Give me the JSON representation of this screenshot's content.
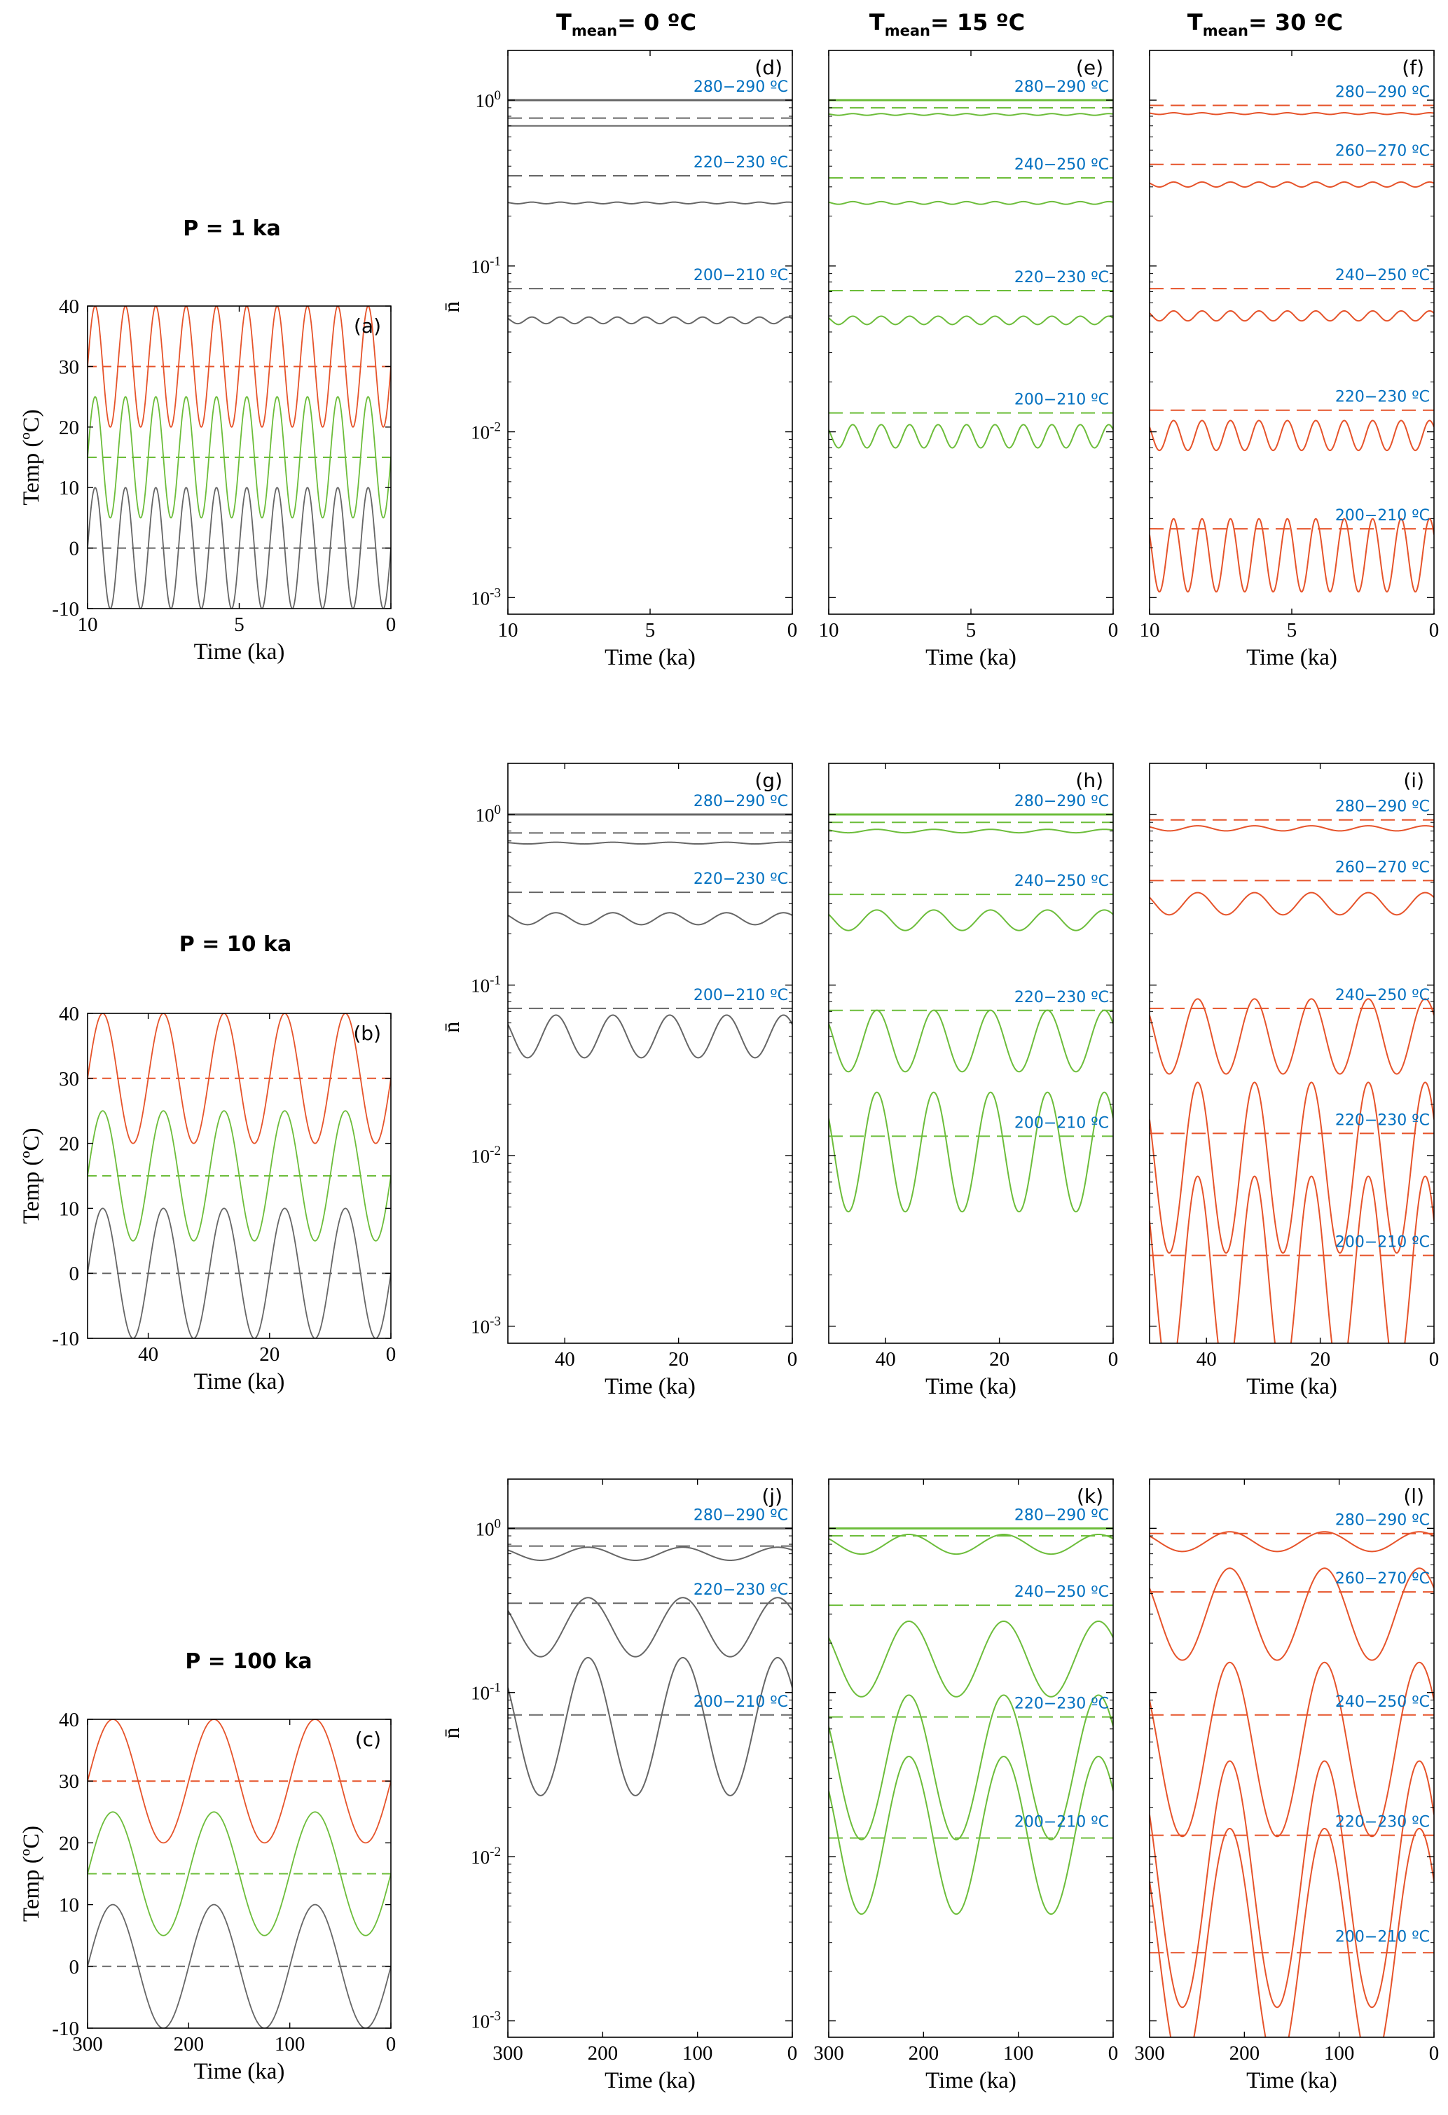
{
  "colors": {
    "gray": "#666666",
    "green": "#6cbd3a",
    "orange": "#e6532a",
    "band_label": "#0070c0",
    "axis": "#000000"
  },
  "headers": {
    "col1": {
      "main": "T",
      "sub": "mean",
      "rest": "= 0 ºC"
    },
    "col2": {
      "main": "T",
      "sub": "mean",
      "rest": "= 15 ºC"
    },
    "col3": {
      "main": "T",
      "sub": "mean",
      "rest": "= 30 ºC"
    }
  },
  "row_labels": [
    "P = 1 ka",
    "P = 10 ka",
    "P = 100 ka"
  ],
  "temp_axis": {
    "ylabel": "Temp (ºC)",
    "xlabel": "Time (ka)",
    "yticks": [
      "-10",
      "0",
      "10",
      "20",
      "30",
      "40"
    ],
    "ylim": [
      -10,
      40
    ]
  },
  "n_axis": {
    "ylabel": "n̄",
    "xlabel": "Time (ka)",
    "yticks": [
      "10-3",
      "10-2",
      "10-1",
      "100"
    ],
    "ylim_log10": [
      -3.1,
      0.3
    ]
  },
  "rows": [
    {
      "period_ka": 1,
      "xmax": 10,
      "xticks": [
        "10",
        "5",
        "0"
      ]
    },
    {
      "period_ka": 10,
      "xmax": 50,
      "xticks": [
        "40",
        "20",
        "0"
      ]
    },
    {
      "period_ka": 100,
      "xmax": 300,
      "xticks": [
        "300",
        "200",
        "100",
        "0"
      ]
    }
  ],
  "chart_data": [
    {
      "panel": "(a)",
      "type": "line",
      "kind": "temp",
      "row": 0,
      "xlabel": "Time (ka)",
      "ylabel": "Temp (ºC)",
      "xlim": [
        10,
        0
      ],
      "ylim": [
        -10,
        40
      ],
      "period_ka": 1,
      "amplitude_c": 10,
      "series": [
        {
          "name": "Tmean 0",
          "color": "gray",
          "mean": 0
        },
        {
          "name": "Tmean 15",
          "color": "green",
          "mean": 15
        },
        {
          "name": "Tmean 30",
          "color": "orange",
          "mean": 30
        }
      ]
    },
    {
      "panel": "(b)",
      "type": "line",
      "kind": "temp",
      "row": 1,
      "xlabel": "Time (ka)",
      "ylabel": "Temp (ºC)",
      "xlim": [
        50,
        0
      ],
      "ylim": [
        -10,
        40
      ],
      "period_ka": 10,
      "amplitude_c": 10,
      "series": [
        {
          "name": "Tmean 0",
          "color": "gray",
          "mean": 0
        },
        {
          "name": "Tmean 15",
          "color": "green",
          "mean": 15
        },
        {
          "name": "Tmean 30",
          "color": "orange",
          "mean": 30
        }
      ]
    },
    {
      "panel": "(c)",
      "type": "line",
      "kind": "temp",
      "row": 2,
      "xlabel": "Time (ka)",
      "ylabel": "Temp (ºC)",
      "xlim": [
        300,
        0
      ],
      "ylim": [
        -10,
        40
      ],
      "period_ka": 100,
      "amplitude_c": 10,
      "series": [
        {
          "name": "Tmean 0",
          "color": "gray",
          "mean": 0
        },
        {
          "name": "Tmean 15",
          "color": "green",
          "mean": 15
        },
        {
          "name": "Tmean 30",
          "color": "orange",
          "mean": 30
        }
      ]
    },
    {
      "panel": "(d)",
      "type": "line",
      "kind": "n",
      "row": 0,
      "col": 0,
      "color": "gray",
      "period_ka": 1,
      "xlim": [
        10,
        0
      ],
      "yscale": "log",
      "series": [
        {
          "band": "280-290",
          "label": "280−290 ºC",
          "dashed": 1.0,
          "mean": 1.0,
          "amp": 0.0
        },
        {
          "band": "260-270",
          "label": "",
          "dashed": 0.78,
          "mean": 0.7,
          "amp": 0.0
        },
        {
          "band": "220-230",
          "label": "220−230 ºC",
          "dashed": 0.35,
          "mean": 0.24,
          "amp": 0.005
        },
        {
          "band": "200-210",
          "label": "200−210 ºC",
          "dashed": 0.073,
          "mean": 0.047,
          "amp": 0.02
        }
      ]
    },
    {
      "panel": "(e)",
      "type": "line",
      "kind": "n",
      "row": 0,
      "col": 1,
      "color": "green",
      "period_ka": 1,
      "xlim": [
        10,
        0
      ],
      "yscale": "log",
      "series": [
        {
          "band": "280-290",
          "label": "280−290 ºC",
          "dashed": 1.0,
          "mean": 1.0,
          "amp": 0.0
        },
        {
          "band": "260-270",
          "label": "",
          "dashed": 0.9,
          "mean": 0.82,
          "amp": 0.005
        },
        {
          "band": "240-250",
          "label": "240−250 ºC",
          "dashed": 0.34,
          "mean": 0.24,
          "amp": 0.008
        },
        {
          "band": "220-230",
          "label": "220−230 ºC",
          "dashed": 0.071,
          "mean": 0.047,
          "amp": 0.025
        },
        {
          "band": "200-210",
          "label": "200−210 ºC",
          "dashed": 0.013,
          "mean": 0.0094,
          "amp": 0.07
        }
      ]
    },
    {
      "panel": "(f)",
      "type": "line",
      "kind": "n",
      "row": 0,
      "col": 2,
      "color": "orange",
      "period_ka": 1,
      "xlim": [
        10,
        0
      ],
      "yscale": "log",
      "series": [
        {
          "band": "280-290",
          "label": "280−290 ºC",
          "dashed": 0.93,
          "mean": 0.83,
          "amp": 0.005
        },
        {
          "band": "260-270",
          "label": "260−270 ºC",
          "dashed": 0.41,
          "mean": 0.31,
          "amp": 0.015
        },
        {
          "band": "240-250",
          "label": "240−250 ºC",
          "dashed": 0.073,
          "mean": 0.05,
          "amp": 0.03
        },
        {
          "band": "220-230",
          "label": "220−230 ºC",
          "dashed": 0.0135,
          "mean": 0.0095,
          "amp": 0.09
        },
        {
          "band": "200-210",
          "label": "200−210 ºC",
          "dashed": 0.0026,
          "mean": 0.0018,
          "amp": 0.22
        }
      ]
    },
    {
      "panel": "(g)",
      "type": "line",
      "kind": "n",
      "row": 1,
      "col": 0,
      "color": "gray",
      "period_ka": 10,
      "xlim": [
        50,
        0
      ],
      "yscale": "log",
      "series": [
        {
          "band": "280-290",
          "label": "280−290 ºC",
          "dashed": 1.0,
          "mean": 1.0,
          "amp": 0.0
        },
        {
          "band": "260-270",
          "label": "",
          "dashed": 0.78,
          "mean": 0.68,
          "amp": 0.005
        },
        {
          "band": "220-230",
          "label": "220−230 ºC",
          "dashed": 0.35,
          "mean": 0.245,
          "amp": 0.035
        },
        {
          "band": "200-210",
          "label": "200−210 ºC",
          "dashed": 0.073,
          "mean": 0.05,
          "amp": 0.125
        }
      ]
    },
    {
      "panel": "(h)",
      "type": "line",
      "kind": "n",
      "row": 1,
      "col": 1,
      "color": "green",
      "period_ka": 10,
      "xlim": [
        50,
        0
      ],
      "yscale": "log",
      "series": [
        {
          "band": "280-290",
          "label": "280−290 ºC",
          "dashed": 1.0,
          "mean": 1.0,
          "amp": 0.0
        },
        {
          "band": "260-270",
          "label": "",
          "dashed": 0.9,
          "mean": 0.8,
          "amp": 0.01
        },
        {
          "band": "240-250",
          "label": "240−250 ºC",
          "dashed": 0.34,
          "mean": 0.24,
          "amp": 0.06
        },
        {
          "band": "220-230",
          "label": "220−230 ºC",
          "dashed": 0.071,
          "mean": 0.047,
          "amp": 0.18
        },
        {
          "band": "200-210",
          "label": "200−210 ºC",
          "dashed": 0.013,
          "mean": 0.0105,
          "amp": 0.35
        }
      ]
    },
    {
      "panel": "(i)",
      "type": "line",
      "kind": "n",
      "row": 1,
      "col": 2,
      "color": "orange",
      "period_ka": 10,
      "xlim": [
        50,
        0
      ],
      "yscale": "log",
      "series": [
        {
          "band": "280-290",
          "label": "280−290 ºC",
          "dashed": 0.93,
          "mean": 0.83,
          "amp": 0.015
        },
        {
          "band": "260-270",
          "label": "260−270 ºC",
          "dashed": 0.41,
          "mean": 0.3,
          "amp": 0.065
        },
        {
          "band": "240-250",
          "label": "240−250 ºC",
          "dashed": 0.073,
          "mean": 0.05,
          "amp": 0.22
        },
        {
          "band": "220-230",
          "label": "220−230 ºC",
          "dashed": 0.0135,
          "mean": 0.0085,
          "amp": 0.5
        },
        {
          "band": "200-210",
          "label": "200−210 ºC",
          "dashed": 0.0026,
          "mean": 0.0019,
          "amp": 0.6
        }
      ]
    },
    {
      "panel": "(j)",
      "type": "line",
      "kind": "n",
      "row": 2,
      "col": 0,
      "color": "gray",
      "period_ka": 100,
      "xlim": [
        300,
        0
      ],
      "yscale": "log",
      "series": [
        {
          "band": "280-290",
          "label": "280−290 ºC",
          "dashed": 1.0,
          "mean": 1.0,
          "amp": 0.0
        },
        {
          "band": "260-270",
          "label": "",
          "dashed": 0.78,
          "mean": 0.7,
          "amp": 0.04
        },
        {
          "band": "220-230",
          "label": "220−230 ºC",
          "dashed": 0.35,
          "mean": 0.25,
          "amp": 0.18
        },
        {
          "band": "200-210",
          "label": "200−210 ºC",
          "dashed": 0.073,
          "mean": 0.062,
          "amp": 0.42
        }
      ]
    },
    {
      "panel": "(k)",
      "type": "line",
      "kind": "n",
      "row": 2,
      "col": 1,
      "color": "green",
      "period_ka": 100,
      "xlim": [
        300,
        0
      ],
      "yscale": "log",
      "series": [
        {
          "band": "280-290",
          "label": "280−290 ºC",
          "dashed": 1.0,
          "mean": 1.0,
          "amp": 0.0
        },
        {
          "band": "260-270",
          "label": "",
          "dashed": 0.9,
          "mean": 0.8,
          "amp": 0.06
        },
        {
          "band": "240-250",
          "label": "240−250 ºC",
          "dashed": 0.34,
          "mean": 0.16,
          "amp": 0.23
        },
        {
          "band": "220-230",
          "label": "220−230 ºC",
          "dashed": 0.071,
          "mean": 0.035,
          "amp": 0.44
        },
        {
          "band": "200-210",
          "label": "200−210 ºC",
          "dashed": 0.013,
          "mean": 0.0135,
          "amp": 0.48
        }
      ]
    },
    {
      "panel": "(l)",
      "type": "line",
      "kind": "n",
      "row": 2,
      "col": 2,
      "color": "orange",
      "period_ka": 100,
      "xlim": [
        300,
        0
      ],
      "yscale": "log",
      "series": [
        {
          "band": "280-290",
          "label": "280−290 ºC",
          "dashed": 0.93,
          "mean": 0.83,
          "amp": 0.06
        },
        {
          "band": "260-270",
          "label": "260−270 ºC",
          "dashed": 0.41,
          "mean": 0.3,
          "amp": 0.28
        },
        {
          "band": "240-250",
          "label": "240−250 ºC",
          "dashed": 0.073,
          "mean": 0.045,
          "amp": 0.53
        },
        {
          "band": "220-230",
          "label": "220−230 ºC",
          "dashed": 0.0135,
          "mean": 0.0068,
          "amp": 0.75
        },
        {
          "band": "200-210",
          "label": "200−210 ºC",
          "dashed": 0.0026,
          "mean": 0.0027,
          "amp": 0.74
        }
      ]
    }
  ]
}
